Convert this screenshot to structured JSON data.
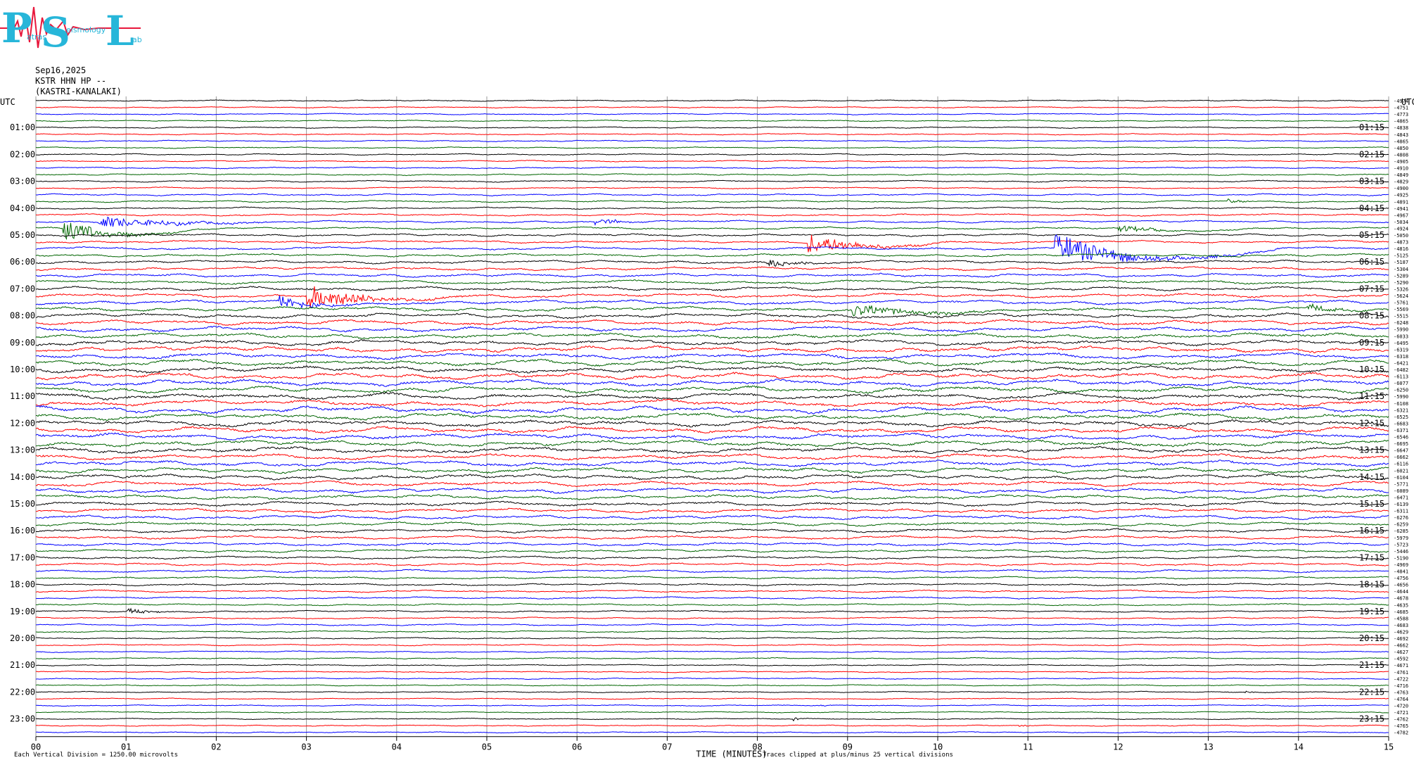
{
  "logo": {
    "letters": [
      "P",
      "S",
      "L"
    ],
    "words": [
      "atras",
      "eismology",
      "ab"
    ]
  },
  "header": {
    "date": "Sep16,2025",
    "station": "KSTR HHN HP --",
    "location": "(KASTRI-KANALAKI)"
  },
  "footer": {
    "left_note": "Each Vertical Division = 1250.00 microvolts",
    "right_note": "Traces clipped at plus/minus 25 vertical divisions"
  },
  "chart_data": {
    "type": "line",
    "title": "",
    "xlabel": "TIME (MINUTES)",
    "x_ticks": [
      "00",
      "01",
      "02",
      "03",
      "04",
      "05",
      "06",
      "07",
      "08",
      "09",
      "10",
      "11",
      "12",
      "13",
      "14",
      "15"
    ],
    "xlim": [
      0,
      15
    ],
    "left_axis_label": "UTC",
    "right_axis_label": "UTC",
    "left_hour_labels": [
      "01:00",
      "02:00",
      "03:00",
      "04:00",
      "05:00",
      "06:00",
      "07:00",
      "08:00",
      "09:00",
      "10:00",
      "11:00",
      "12:00",
      "13:00",
      "14:00",
      "15:00",
      "16:00",
      "17:00",
      "18:00",
      "19:00",
      "20:00",
      "21:00",
      "22:00",
      "23:00"
    ],
    "right_hour_labels": [
      "01:15",
      "02:15",
      "03:15",
      "04:15",
      "05:15",
      "06:15",
      "07:15",
      "08:15",
      "09:15",
      "10:15",
      "11:15",
      "12:15",
      "13:15",
      "14:15",
      "15:15",
      "16:15",
      "17:15",
      "18:15",
      "19:15",
      "20:15",
      "21:15",
      "22:15",
      "23:15"
    ],
    "trace_colors": [
      "#000000",
      "#ff0000",
      "#0000ff",
      "#006400"
    ],
    "trace_offsets": [
      -4974,
      -4751,
      -4773,
      -4865,
      -4838,
      -4843,
      -4865,
      -4850,
      -4808,
      -4905,
      -4910,
      -4849,
      -4829,
      -4900,
      -4925,
      -4891,
      -4941,
      -4967,
      -5034,
      -4924,
      -5050,
      -4873,
      -4816,
      -5125,
      -5187,
      -5304,
      -5289,
      -5290,
      -5326,
      -5624,
      -5761,
      -5569,
      -5515,
      -6248,
      -5990,
      -6033,
      -6495,
      -6319,
      -6318,
      -6421,
      -6482,
      -6113,
      -6077,
      -6250,
      -5990,
      -6108,
      -6321,
      -6525,
      -6683,
      -6371,
      -6546,
      -6695,
      -6647,
      -6662,
      -6116,
      -6021,
      -6104,
      -5771,
      -6089,
      -6471,
      -6139,
      -6311,
      -6276,
      -6259,
      -6285,
      -5979,
      -5723,
      -5446,
      -5190,
      -4969,
      -4841,
      -4756,
      -4656,
      -4644,
      -4678,
      -4635,
      -4685,
      -4588,
      -4683,
      -4629,
      -4692,
      -4662,
      -4627,
      -4592,
      -4671,
      -4761,
      -4722,
      -4716,
      -4763,
      -4764,
      -4720,
      -4721,
      -4762,
      -4765,
      -4782
    ],
    "events": [
      {
        "trace": 19,
        "minute": 0.3,
        "amp": 16,
        "dur": 1.5,
        "tail": 0.6
      },
      {
        "trace": 18,
        "minute": 0.7,
        "amp": 9,
        "dur": 2.4,
        "tail": 0.3
      },
      {
        "trace": 18,
        "minute": 6.2,
        "amp": 5,
        "dur": 0.8,
        "tail": 0.1
      },
      {
        "trace": 21,
        "minute": 8.55,
        "amp": 15,
        "dur": 1.6,
        "tail": 0.5
      },
      {
        "trace": 22,
        "minute": 11.3,
        "amp": 20,
        "dur": 2.5,
        "tail": 0.7
      },
      {
        "trace": 24,
        "minute": 8.1,
        "amp": 6,
        "dur": 1.0,
        "tail": 0.4
      },
      {
        "trace": 29,
        "minute": 3.0,
        "amp": 18,
        "dur": 1.8,
        "tail": 0.4
      },
      {
        "trace": 30,
        "minute": 2.7,
        "amp": 10,
        "dur": 1.2,
        "tail": 0.4
      },
      {
        "trace": 31,
        "minute": 9.05,
        "amp": 9,
        "dur": 2.2,
        "tail": 0.7
      },
      {
        "trace": 31,
        "minute": 14.1,
        "amp": 6,
        "dur": 0.9,
        "tail": 0.4
      },
      {
        "trace": 19,
        "minute": 12.0,
        "amp": 5,
        "dur": 1.4,
        "tail": 0.7
      },
      {
        "trace": 15,
        "minute": 13.2,
        "amp": 4,
        "dur": 0.5,
        "tail": 0.1
      },
      {
        "trace": 76,
        "minute": 1.0,
        "amp": 6,
        "dur": 0.6,
        "tail": 0.1
      },
      {
        "trace": 88,
        "minute": 13.4,
        "amp": 3,
        "dur": 0.2,
        "tail": 0.0
      },
      {
        "trace": 92,
        "minute": 8.4,
        "amp": 3,
        "dur": 0.2,
        "tail": 0.0
      },
      {
        "trace": 93,
        "minute": 10.9,
        "amp": 3,
        "dur": 0.2,
        "tail": 0.0
      },
      {
        "trace": 90,
        "minute": 8.7,
        "amp": 2,
        "dur": 0.3,
        "tail": 0.0
      }
    ]
  }
}
